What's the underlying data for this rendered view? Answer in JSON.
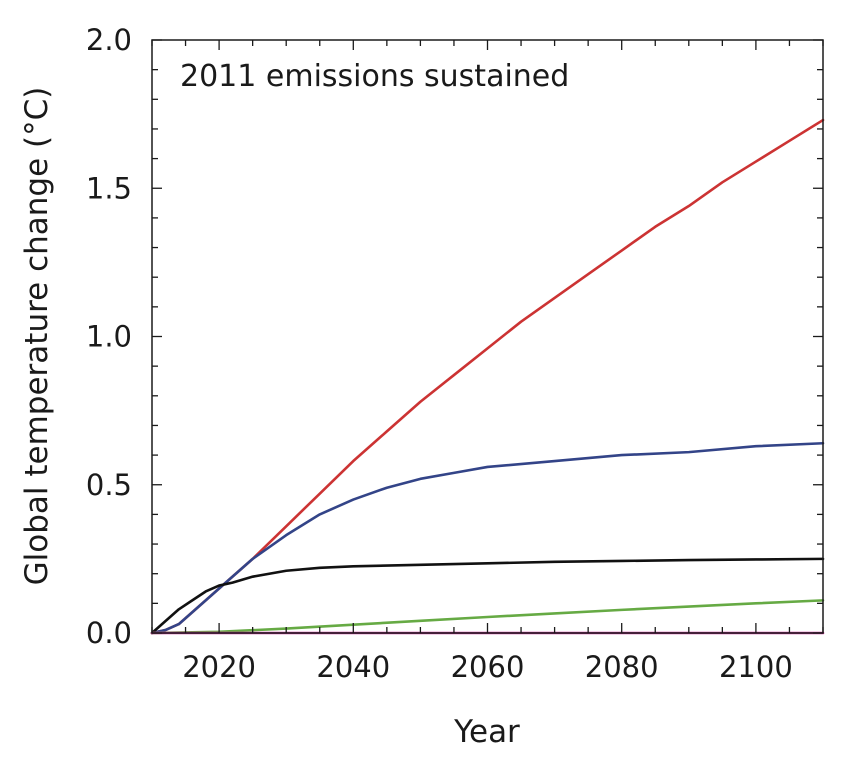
{
  "chart_data": {
    "type": "line",
    "title": "",
    "annotation": "2011 emissions sustained",
    "xlabel": "Year",
    "ylabel": "Global temperature change (°C)",
    "xlim": [
      2010,
      2110
    ],
    "ylim": [
      0.0,
      2.0
    ],
    "xticks": [
      2020,
      2040,
      2060,
      2080,
      2100
    ],
    "yticks": [
      "0.0",
      "0.5",
      "1.0",
      "1.5",
      "2.0"
    ],
    "grid": false,
    "legend": "none",
    "series": [
      {
        "name": "red",
        "color": "#cc3333",
        "x": [
          2010,
          2012,
          2014,
          2016,
          2018,
          2020,
          2022,
          2025,
          2030,
          2035,
          2040,
          2045,
          2050,
          2055,
          2060,
          2065,
          2070,
          2075,
          2080,
          2085,
          2090,
          2095,
          2100,
          2105,
          2110
        ],
        "y": [
          0.0,
          0.01,
          0.03,
          0.07,
          0.11,
          0.15,
          0.19,
          0.25,
          0.36,
          0.47,
          0.58,
          0.68,
          0.78,
          0.87,
          0.96,
          1.05,
          1.13,
          1.21,
          1.29,
          1.37,
          1.44,
          1.52,
          1.59,
          1.66,
          1.73
        ]
      },
      {
        "name": "blue",
        "color": "#334488",
        "x": [
          2010,
          2012,
          2014,
          2016,
          2018,
          2020,
          2022,
          2025,
          2030,
          2035,
          2040,
          2045,
          2050,
          2055,
          2060,
          2070,
          2080,
          2090,
          2100,
          2110
        ],
        "y": [
          0.0,
          0.01,
          0.03,
          0.07,
          0.11,
          0.15,
          0.19,
          0.25,
          0.33,
          0.4,
          0.45,
          0.49,
          0.52,
          0.54,
          0.56,
          0.58,
          0.6,
          0.61,
          0.63,
          0.64
        ]
      },
      {
        "name": "black",
        "color": "#111111",
        "x": [
          2010,
          2012,
          2014,
          2016,
          2018,
          2020,
          2022,
          2025,
          2030,
          2035,
          2040,
          2050,
          2060,
          2070,
          2080,
          2090,
          2100,
          2110
        ],
        "y": [
          0.0,
          0.04,
          0.08,
          0.11,
          0.14,
          0.16,
          0.17,
          0.19,
          0.21,
          0.22,
          0.225,
          0.23,
          0.235,
          0.24,
          0.243,
          0.246,
          0.248,
          0.25
        ]
      },
      {
        "name": "green",
        "color": "#66aa44",
        "x": [
          2010,
          2020,
          2030,
          2040,
          2050,
          2060,
          2070,
          2080,
          2090,
          2100,
          2110
        ],
        "y": [
          0.0,
          0.004,
          0.015,
          0.028,
          0.041,
          0.054,
          0.066,
          0.078,
          0.089,
          0.1,
          0.11
        ]
      },
      {
        "name": "magenta",
        "color": "#cc3399",
        "x": [
          2010,
          2110
        ],
        "y": [
          0.0,
          0.0
        ]
      }
    ]
  }
}
